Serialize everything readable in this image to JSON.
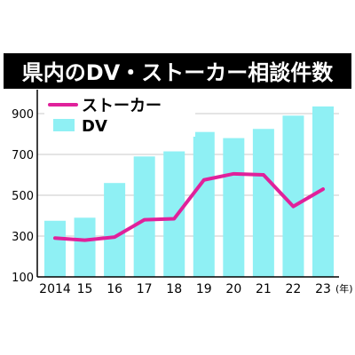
{
  "chart_data": {
    "type": "bar",
    "title": "県内のDV・ストーカー相談件数",
    "categories": [
      "2014",
      "15",
      "16",
      "17",
      "18",
      "19",
      "20",
      "21",
      "22",
      "23"
    ],
    "x_unit": "(年)",
    "ylim": [
      100,
      1000
    ],
    "yticks": [
      "100",
      "300",
      "500",
      "700",
      "900"
    ],
    "grid": true,
    "legend_position": "top-left",
    "series": [
      {
        "name": "DV",
        "kind": "bar",
        "color": "#8ff0f4",
        "values": [
          375,
          390,
          560,
          690,
          715,
          810,
          780,
          825,
          890,
          935
        ]
      },
      {
        "name": "ストーカー",
        "kind": "line",
        "color": "#e0219b",
        "values": [
          290,
          280,
          295,
          380,
          385,
          575,
          605,
          600,
          445,
          530
        ]
      }
    ],
    "colors": {
      "title_background": "#000000",
      "title_text": "#ffffff",
      "grid": "#c8c8c8",
      "axis": "#000000"
    }
  }
}
